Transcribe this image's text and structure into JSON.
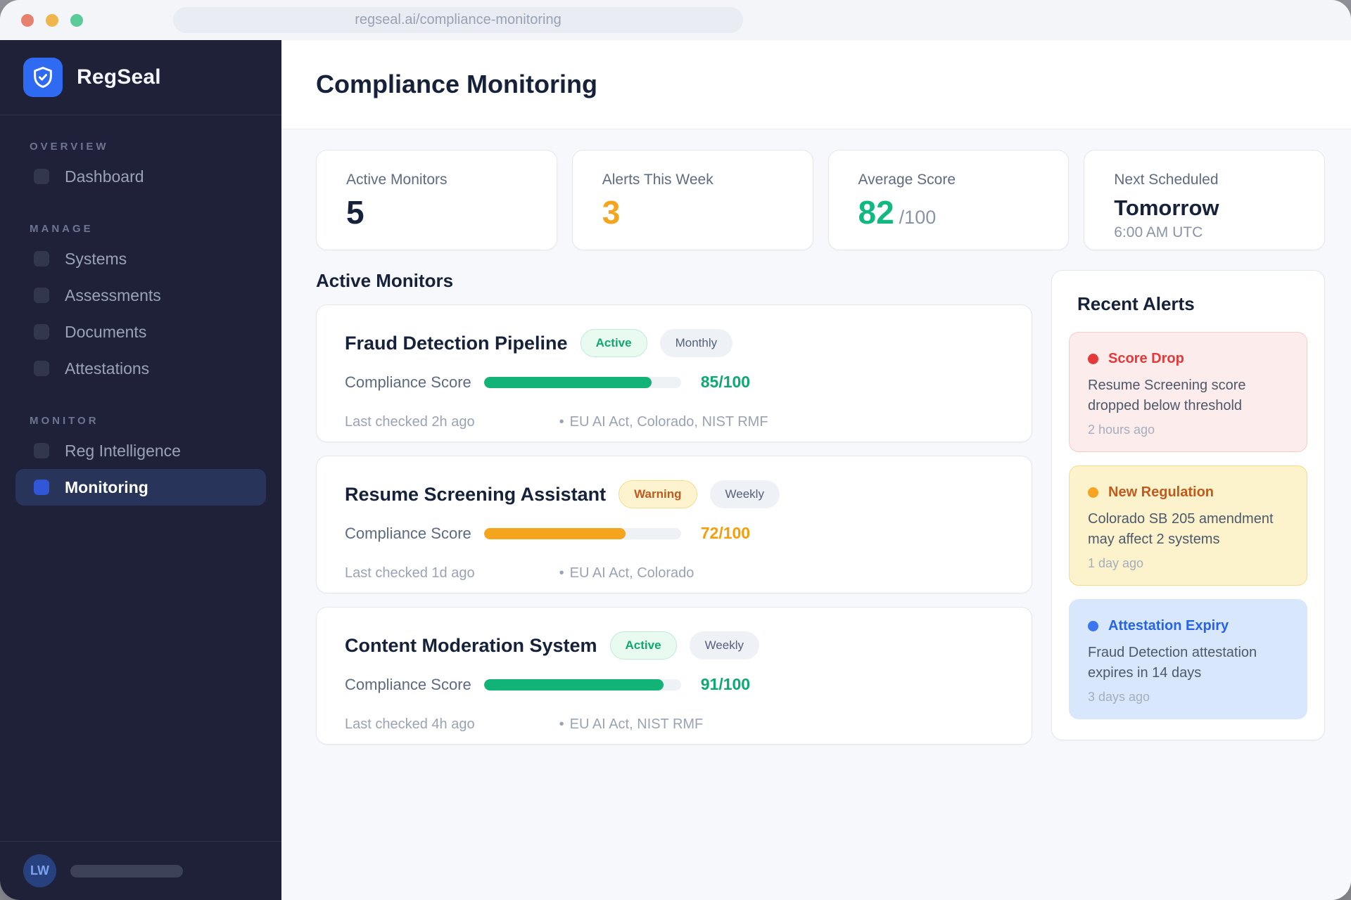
{
  "browser": {
    "url": "regseal.ai/compliance-monitoring"
  },
  "brand": {
    "name": "RegSeal"
  },
  "sidebar": {
    "sections": [
      {
        "label": "OVERVIEW",
        "items": [
          {
            "label": "Dashboard"
          }
        ]
      },
      {
        "label": "MANAGE",
        "items": [
          {
            "label": "Systems"
          },
          {
            "label": "Assessments"
          },
          {
            "label": "Documents"
          },
          {
            "label": "Attestations"
          }
        ]
      },
      {
        "label": "MONITOR",
        "items": [
          {
            "label": "Reg Intelligence"
          },
          {
            "label": "Monitoring",
            "active": true
          }
        ]
      }
    ],
    "footer": {
      "initials": "LW"
    }
  },
  "header": {
    "title": "Compliance Monitoring"
  },
  "stats": [
    {
      "label": "Active Monitors",
      "value": "5"
    },
    {
      "label": "Alerts This Week",
      "value": "3"
    },
    {
      "label": "Average Score",
      "value": "82",
      "suffix": "/100"
    },
    {
      "label": "Next Scheduled",
      "value": "Tomorrow",
      "detail": "6:00 AM UTC"
    }
  ],
  "monitors": {
    "heading": "Active Monitors",
    "score_label": "Compliance Score",
    "separator": "•",
    "items": [
      {
        "name": "Fraud Detection Pipeline",
        "status": "Active",
        "frequency": "Monthly",
        "score": 85,
        "score_text": "85/100",
        "last_checked": "Last checked 2h ago",
        "frameworks": "EU AI Act, Colorado, NIST RMF"
      },
      {
        "name": "Resume Screening Assistant",
        "status": "Warning",
        "frequency": "Weekly",
        "score": 72,
        "score_text": "72/100",
        "last_checked": "Last checked 1d ago",
        "frameworks": "EU AI Act, Colorado"
      },
      {
        "name": "Content Moderation System",
        "status": "Active",
        "frequency": "Weekly",
        "score": 91,
        "score_text": "91/100",
        "last_checked": "Last checked 4h ago",
        "frameworks": "EU AI Act, NIST RMF"
      }
    ]
  },
  "alerts": {
    "heading": "Recent Alerts",
    "items": [
      {
        "title": "Score Drop",
        "body": "Resume Screening score dropped below threshold",
        "time": "2 hours ago",
        "severity": "critical"
      },
      {
        "title": "New Regulation",
        "body": "Colorado SB 205 amendment may affect 2 systems",
        "time": "1 day ago",
        "severity": "warning"
      },
      {
        "title": "Attestation Expiry",
        "body": "Fraud Detection attestation expires in 14 days",
        "time": "3 days ago",
        "severity": "info"
      }
    ]
  },
  "colors": {
    "sidebar_bg": "#1e2138",
    "accent_blue": "#2f6bf2",
    "success_green": "#10b981",
    "warning_orange": "#f5a41d",
    "critical_red": "#e5383b",
    "info_blue": "#2563eb"
  }
}
